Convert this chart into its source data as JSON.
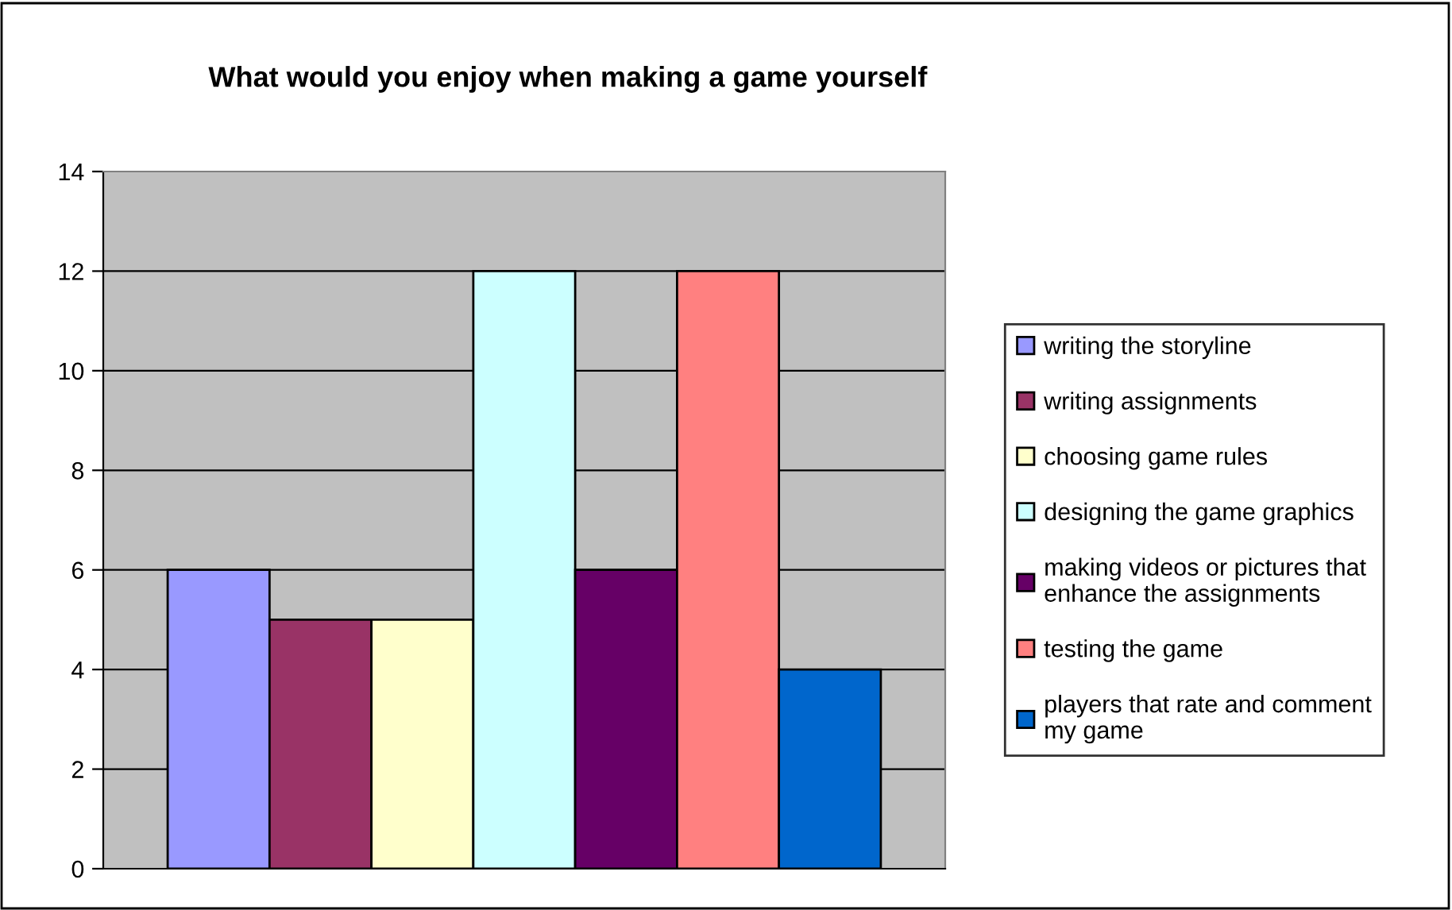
{
  "chart_data": {
    "type": "bar",
    "title": "What would you enjoy when making a game yourself",
    "categories": [
      null
    ],
    "series": [
      {
        "name": "writing the storyline",
        "color": "#9999ff",
        "values": [
          6
        ]
      },
      {
        "name": "writing assignments",
        "color": "#993366",
        "values": [
          5
        ]
      },
      {
        "name": "choosing game rules",
        "color": "#ffffcc",
        "values": [
          5
        ]
      },
      {
        "name": "designing the game graphics",
        "color": "#ccffff",
        "values": [
          12
        ]
      },
      {
        "name": "making videos or pictures that\nenhance the assignments",
        "color": "#660066",
        "values": [
          6
        ]
      },
      {
        "name": "testing the game",
        "color": "#ff8080",
        "values": [
          12
        ]
      },
      {
        "name": "players that rate and comment\nmy game",
        "color": "#0066cc",
        "values": [
          4
        ]
      }
    ],
    "ylim": [
      0,
      14
    ],
    "yticks": [
      0,
      2,
      4,
      6,
      8,
      10,
      12,
      14
    ],
    "grid": "y",
    "legend": "right"
  }
}
